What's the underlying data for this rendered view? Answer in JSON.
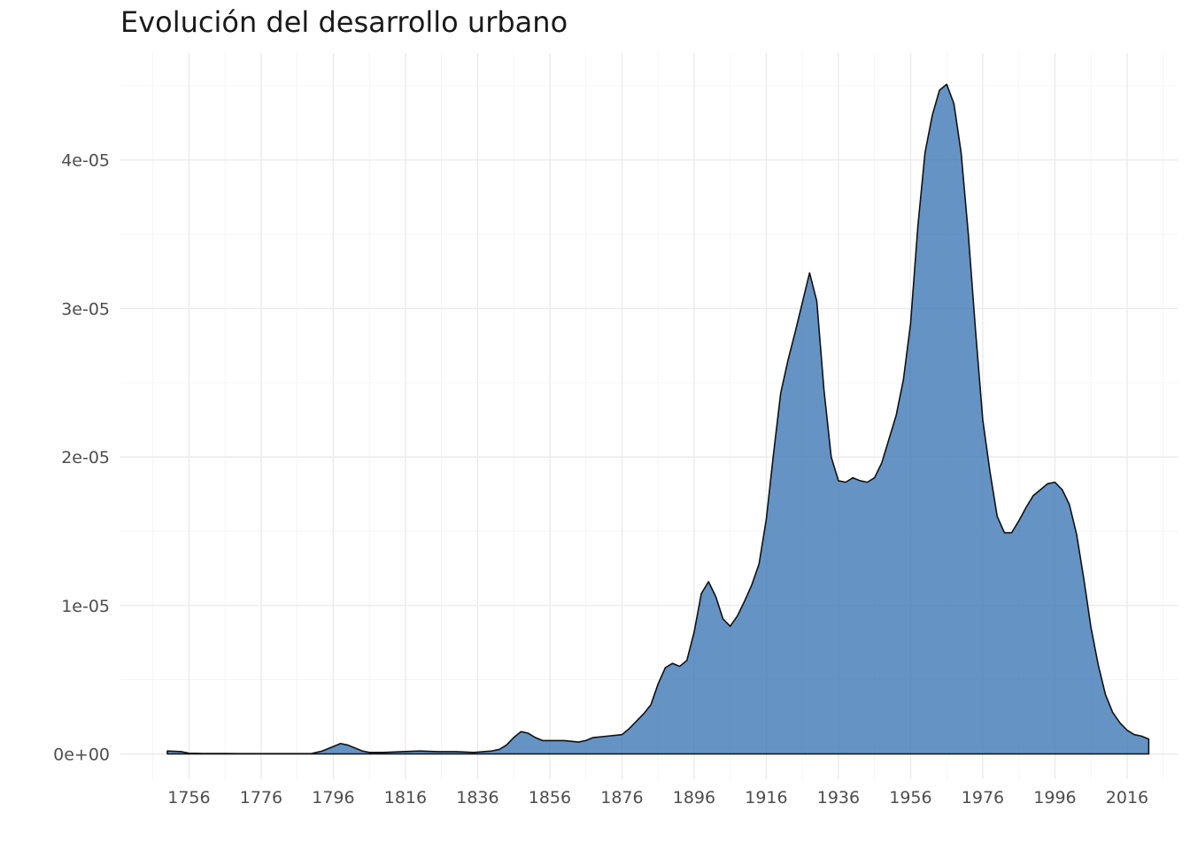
{
  "chart_data": {
    "type": "area",
    "title": "Evolución del desarrollo urbano",
    "xlabel": "",
    "ylabel": "",
    "xlim": [
      1737,
      2030
    ],
    "ylim": [
      -1.7e-06,
      4.72e-05
    ],
    "grid": true,
    "fill_color": "#3a75b4",
    "x_ticks": [
      1756,
      1776,
      1796,
      1816,
      1836,
      1856,
      1876,
      1896,
      1916,
      1936,
      1956,
      1976,
      1996,
      2016
    ],
    "x_tick_labels": [
      "1756",
      "1776",
      "1796",
      "1816",
      "1836",
      "1856",
      "1876",
      "1896",
      "1916",
      "1936",
      "1956",
      "1976",
      "1996",
      "2016"
    ],
    "y_ticks": [
      0,
      1e-05,
      2e-05,
      3e-05,
      4e-05
    ],
    "y_tick_labels": [
      "0e+00",
      "1e-05",
      "2e-05",
      "3e-05",
      "4e-05"
    ],
    "series": [
      {
        "x": [
          1750,
          1754,
          1756,
          1760,
          1770,
          1780,
          1790,
          1793,
          1796,
          1798,
          1800,
          1802,
          1804,
          1806,
          1810,
          1815,
          1820,
          1825,
          1830,
          1835,
          1840,
          1842,
          1844,
          1846,
          1848,
          1850,
          1852,
          1854,
          1856,
          1860,
          1864,
          1866,
          1868,
          1872,
          1876,
          1878,
          1880,
          1882,
          1884,
          1886,
          1888,
          1890,
          1892,
          1894,
          1896,
          1898,
          1900,
          1902,
          1904,
          1906,
          1908,
          1910,
          1912,
          1914,
          1916,
          1918,
          1920,
          1922,
          1924,
          1926,
          1928,
          1930,
          1932,
          1934,
          1936,
          1938,
          1940,
          1942,
          1944,
          1946,
          1948,
          1950,
          1952,
          1954,
          1956,
          1958,
          1960,
          1962,
          1964,
          1966,
          1968,
          1970,
          1972,
          1974,
          1976,
          1978,
          1980,
          1982,
          1984,
          1986,
          1988,
          1990,
          1992,
          1994,
          1996,
          1998,
          2000,
          2002,
          2004,
          2006,
          2008,
          2010,
          2012,
          2014,
          2016,
          2018,
          2020,
          2022
        ],
        "y": [
          2e-07,
          1.5e-07,
          5e-08,
          3e-08,
          2e-08,
          2e-08,
          3e-08,
          2e-07,
          5e-07,
          7e-07,
          6e-07,
          4e-07,
          2e-07,
          1e-07,
          1e-07,
          1.5e-07,
          2e-07,
          1.5e-07,
          1.5e-07,
          1e-07,
          2e-07,
          3e-07,
          6e-07,
          1.1e-06,
          1.5e-06,
          1.4e-06,
          1.1e-06,
          9e-07,
          9e-07,
          9e-07,
          8e-07,
          9e-07,
          1.1e-06,
          1.2e-06,
          1.3e-06,
          1.7e-06,
          2.2e-06,
          2.7e-06,
          3.3e-06,
          4.7e-06,
          5.8e-06,
          6.1e-06,
          5.9e-06,
          6.3e-06,
          8.2e-06,
          1.08e-05,
          1.16e-05,
          1.06e-05,
          9.1e-06,
          8.6e-06,
          9.3e-06,
          1.03e-05,
          1.14e-05,
          1.28e-05,
          1.58e-05,
          2.02e-05,
          2.43e-05,
          2.65e-05,
          2.84e-05,
          3.04e-05,
          3.24e-05,
          3.05e-05,
          2.45e-05,
          2e-05,
          1.84e-05,
          1.83e-05,
          1.86e-05,
          1.84e-05,
          1.83e-05,
          1.86e-05,
          1.96e-05,
          2.12e-05,
          2.28e-05,
          2.52e-05,
          2.9e-05,
          3.55e-05,
          4.05e-05,
          4.3e-05,
          4.47e-05,
          4.51e-05,
          4.38e-05,
          4.05e-05,
          3.5e-05,
          2.85e-05,
          2.25e-05,
          1.9e-05,
          1.6e-05,
          1.49e-05,
          1.49e-05,
          1.57e-05,
          1.66e-05,
          1.74e-05,
          1.78e-05,
          1.82e-05,
          1.83e-05,
          1.78e-05,
          1.68e-05,
          1.48e-05,
          1.18e-05,
          8.5e-06,
          6e-06,
          4e-06,
          2.8e-06,
          2.1e-06,
          1.6e-06,
          1.3e-06,
          1.2e-06,
          1e-06
        ]
      }
    ]
  }
}
